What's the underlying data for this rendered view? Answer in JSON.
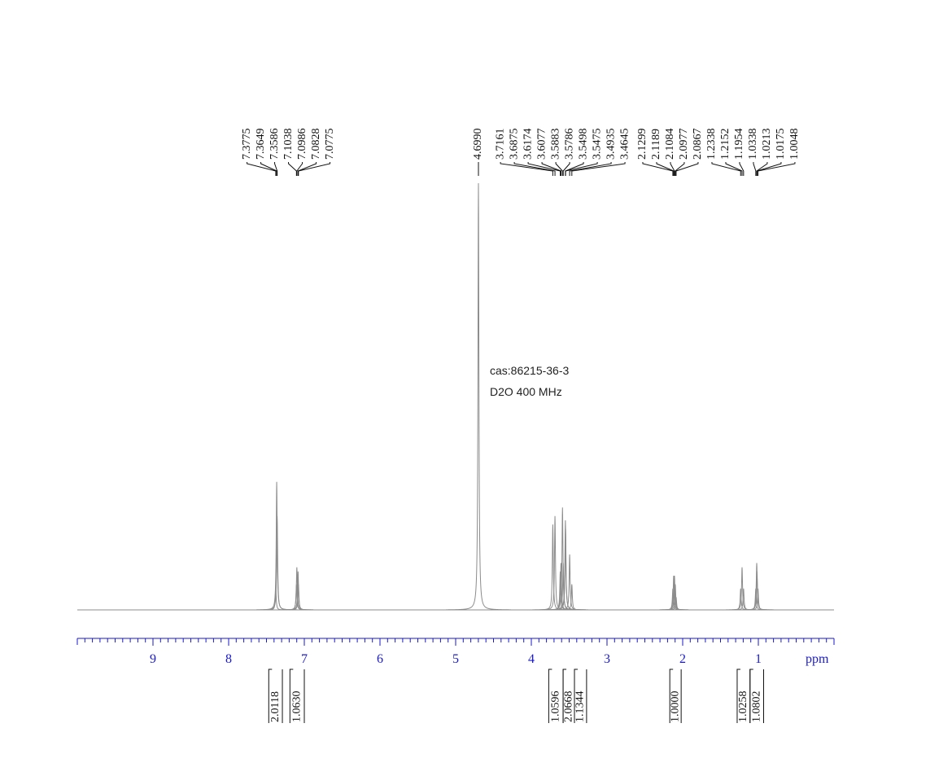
{
  "chart_data": {
    "type": "nmr",
    "annotations": [
      "cas:86215-36-3",
      "D2O  400 MHz"
    ],
    "x_label": "ppm",
    "xlim": [
      10,
      0
    ],
    "xticks": [
      9,
      8,
      7,
      6,
      5,
      4,
      3,
      2,
      1
    ],
    "xminor_step": 0.1,
    "color": "#8c8c8c",
    "axis_color": "#1a1acc",
    "peaks": {
      "values": [
        7.3775,
        7.3649,
        7.3586,
        7.1038,
        7.0986,
        7.0828,
        7.0775,
        4.699,
        3.7161,
        3.6875,
        3.6174,
        3.6077,
        3.5883,
        3.5786,
        3.5498,
        3.5475,
        3.4935,
        3.4645,
        2.1299,
        2.1189,
        2.1084,
        2.0977,
        2.0867,
        1.2338,
        1.2152,
        1.1954,
        1.0338,
        1.0213,
        1.0175,
        1.0048
      ],
      "value_labels": [
        "7.3775",
        "7.3649",
        "7.3586",
        "7.1038",
        "7.0986",
        "7.0828",
        "7.0775",
        "4.6990",
        "3.7161",
        "3.6875",
        "3.6174",
        "3.6077",
        "3.5883",
        "3.5786",
        "3.5498",
        "3.5475",
        "3.4935",
        "3.4645",
        "2.1299",
        "2.1189",
        "2.1084",
        "2.0977",
        "2.0867",
        "1.2338",
        "1.2152",
        "1.1954",
        "1.0338",
        "1.0213",
        "1.0175",
        "1.0048"
      ],
      "intensities": [
        5,
        30,
        22,
        6,
        10,
        9,
        6,
        100,
        20,
        22,
        9,
        11,
        24,
        11,
        21,
        19,
        13,
        6,
        5,
        8,
        8,
        6,
        3,
        5,
        10,
        5,
        5,
        11,
        9,
        5
      ]
    },
    "integrals": {
      "values": [
        2.0118,
        1.063,
        1.0596,
        2.0668,
        1.1344,
        1.0,
        1.0258,
        1.0802
      ],
      "value_labels": [
        "2.0118",
        "1.0630",
        "1.0596",
        "2.0668",
        "1.1344",
        "1.0000",
        "1.0258",
        "1.0802"
      ],
      "from": [
        7.47,
        7.19,
        3.77,
        3.58,
        3.43,
        2.17,
        1.28,
        1.11
      ],
      "to": [
        7.29,
        7.0,
        3.58,
        3.43,
        3.27,
        2.02,
        1.11,
        0.93
      ]
    }
  }
}
